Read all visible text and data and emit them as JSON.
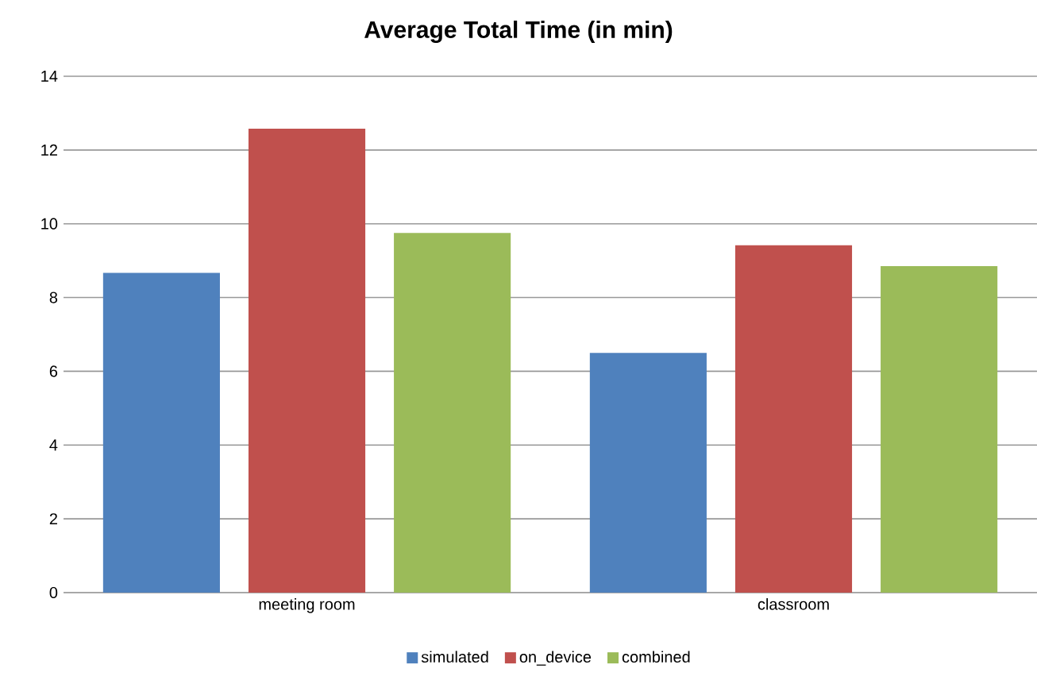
{
  "chart_data": {
    "type": "bar",
    "title": "**Average Total Time (in min)**",
    "categories": [
      "meeting room",
      "classroom"
    ],
    "series": [
      {
        "name": "simulated",
        "color": "#4f81bd",
        "values": [
          8.67,
          6.5
        ]
      },
      {
        "name": "on_device",
        "color": "#c0504d",
        "values": [
          12.58,
          9.42
        ]
      },
      {
        "name": "combined",
        "color": "#9bbb59",
        "values": [
          9.75,
          8.85
        ]
      }
    ],
    "ylim": [
      0,
      14
    ],
    "yticks": [
      0,
      2,
      4,
      6,
      8,
      10,
      12,
      14
    ],
    "grid": "y",
    "legend": "bottom"
  }
}
